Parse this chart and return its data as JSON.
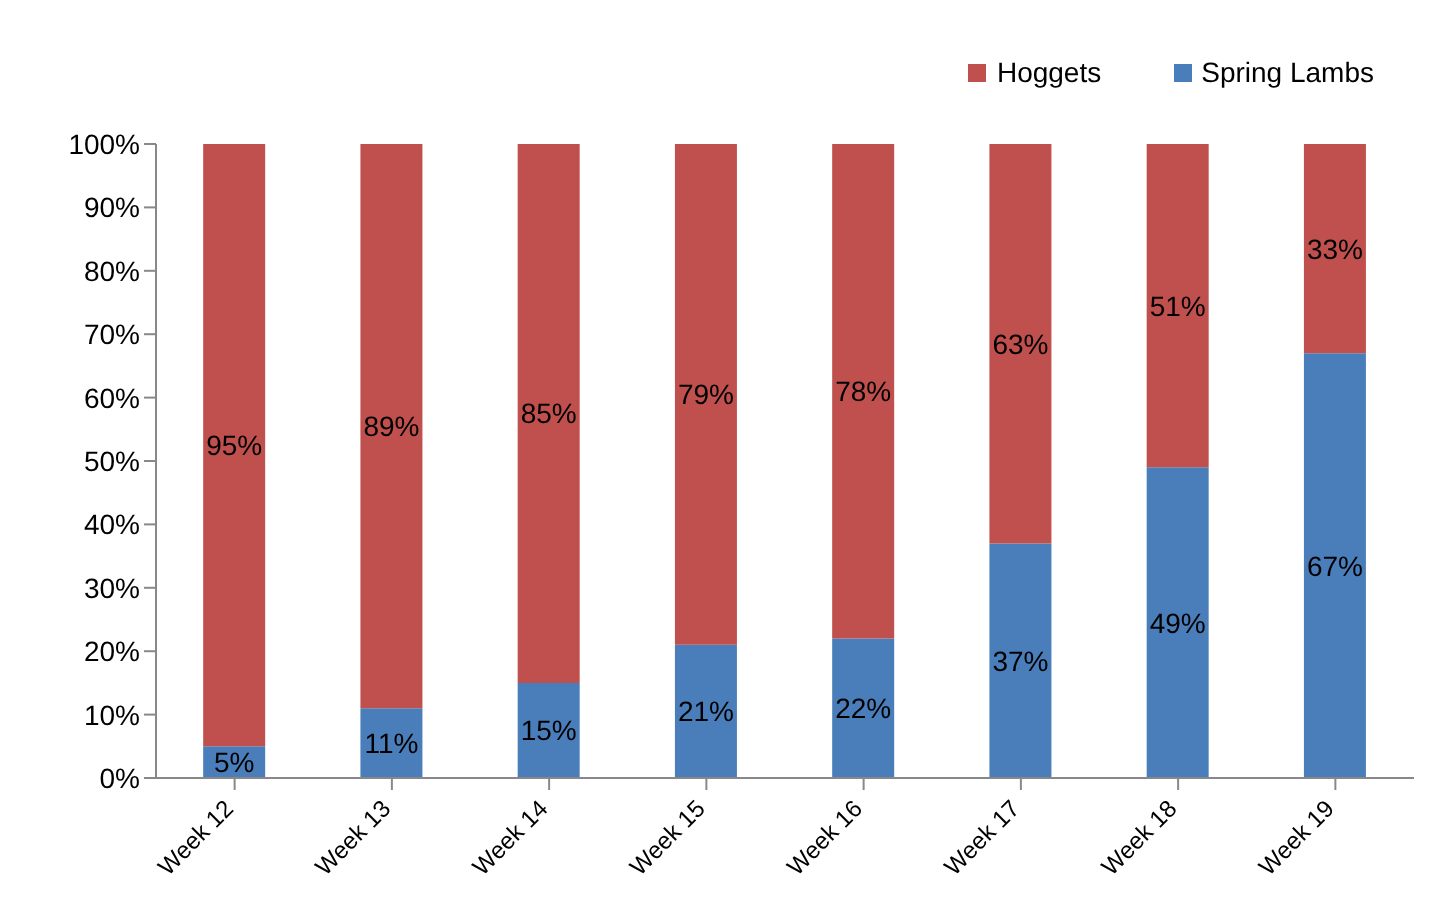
{
  "chart_data": {
    "type": "bar",
    "stacked": true,
    "categories": [
      "Week 12",
      "Week 13",
      "Week 14",
      "Week 15",
      "Week 16",
      "Week 17",
      "Week 18",
      "Week 19"
    ],
    "series": [
      {
        "name": "Spring Lambs",
        "color": "#4a7ebb",
        "values": [
          5,
          11,
          15,
          21,
          22,
          37,
          49,
          67
        ],
        "value_labels": [
          "5%",
          "11%",
          "15%",
          "21%",
          "22%",
          "37%",
          "49%",
          "67%"
        ]
      },
      {
        "name": "Hoggets",
        "color": "#c0504d",
        "values": [
          95,
          89,
          85,
          79,
          78,
          63,
          51,
          33
        ],
        "value_labels": [
          "95%",
          "89%",
          "85%",
          "79%",
          "78%",
          "63%",
          "51%",
          "33%"
        ]
      }
    ],
    "ylim": [
      0,
      100
    ],
    "yticks": [
      {
        "value": 0,
        "label": "0%"
      },
      {
        "value": 10,
        "label": "10%"
      },
      {
        "value": 20,
        "label": "20%"
      },
      {
        "value": 30,
        "label": "30%"
      },
      {
        "value": 40,
        "label": "40%"
      },
      {
        "value": 50,
        "label": "50%"
      },
      {
        "value": 60,
        "label": "60%"
      },
      {
        "value": 70,
        "label": "70%"
      },
      {
        "value": 80,
        "label": "80%"
      },
      {
        "value": 90,
        "label": "90%"
      },
      {
        "value": 100,
        "label": "100%"
      }
    ],
    "grid": false,
    "legend": "top right"
  }
}
